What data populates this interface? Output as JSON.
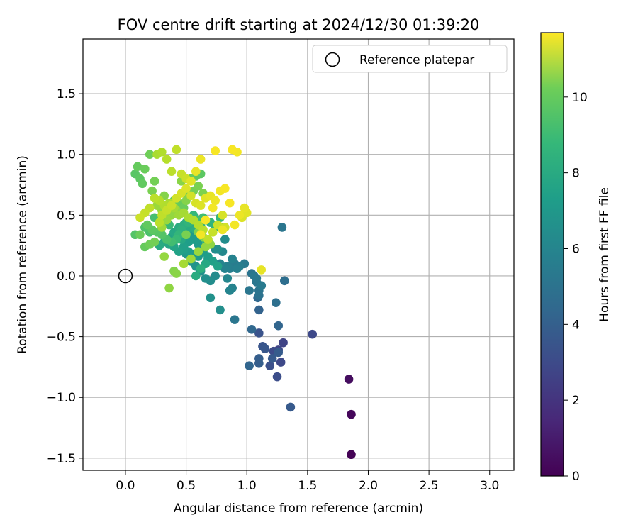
{
  "chart_data": {
    "type": "scatter",
    "title": "FOV centre drift starting at 2024/12/30 01:39:20",
    "xlabel": "Angular distance from reference (arcmin)",
    "ylabel": "Rotation from reference (arcmin)",
    "xlim": [
      -0.35,
      3.2
    ],
    "ylim": [
      -1.6,
      1.95
    ],
    "xticks": [
      0.0,
      0.5,
      1.0,
      1.5,
      2.0,
      2.5,
      3.0
    ],
    "xtick_labels": [
      "0.0",
      "0.5",
      "1.0",
      "1.5",
      "2.0",
      "2.5",
      "3.0"
    ],
    "yticks": [
      -1.5,
      -1.0,
      -0.5,
      0.0,
      0.5,
      1.0,
      1.5
    ],
    "ytick_labels": [
      "−1.5",
      "−1.0",
      "−0.5",
      "0.0",
      "0.5",
      "1.0",
      "1.5"
    ],
    "grid": true,
    "legend": {
      "position": "top-right",
      "label": "Reference platepar"
    },
    "reference_point": {
      "x": 0.0,
      "y": 0.0
    },
    "colorbar": {
      "label": "Hours from first FF file",
      "range": [
        0,
        11.7
      ],
      "ticks": [
        0,
        2,
        4,
        6,
        8,
        10
      ],
      "tick_labels": [
        "0",
        "2",
        "4",
        "6",
        "8",
        "10"
      ],
      "colormap": "viridis"
    },
    "series": [
      {
        "x": [
          1.86,
          1.86,
          1.84,
          1.3,
          1.26,
          1.28,
          1.22,
          1.25,
          1.19,
          1.1,
          1.13,
          1.15,
          1.21,
          1.26,
          1.1,
          1.1,
          1.36,
          1.54,
          1.02,
          1.26,
          1.1,
          1.09,
          1.04
        ],
        "y": [
          -1.47,
          -1.14,
          -0.85,
          -0.55,
          -0.61,
          -0.71,
          -0.62,
          -0.83,
          -0.74,
          -0.47,
          -0.58,
          -0.6,
          -0.68,
          -0.63,
          -0.72,
          -0.68,
          -1.08,
          -0.48,
          -0.74,
          -0.41,
          -0.28,
          -0.18,
          -0.44
        ],
        "hours": [
          0.05,
          0.2,
          0.4,
          2.4,
          2.5,
          2.6,
          2.7,
          2.8,
          2.9,
          3.0,
          3.1,
          3.2,
          3.3,
          3.4,
          3.5,
          3.5,
          3.3,
          2.6,
          3.8,
          3.8,
          3.7,
          3.9,
          3.9
        ]
      },
      {
        "x": [
          1.31,
          1.29,
          1.24,
          1.1,
          1.1,
          1.04,
          1.02,
          1.08,
          1.06,
          1.08,
          1.12,
          0.98,
          0.9,
          0.86,
          0.84,
          0.82,
          0.78,
          0.9,
          0.94,
          0.92,
          0.88,
          0.86,
          0.84,
          0.8,
          0.74,
          0.7,
          0.66,
          0.62,
          0.58,
          0.54,
          0.5,
          0.7,
          0.68,
          0.64,
          0.6,
          0.56,
          0.52,
          0.48,
          0.44,
          0.4,
          0.36,
          0.32,
          0.28,
          0.82,
          0.78,
          0.74,
          0.88,
          0.76
        ],
        "y": [
          -0.04,
          0.4,
          -0.22,
          -0.16,
          -0.12,
          0.02,
          -0.12,
          -0.05,
          0.0,
          -0.02,
          -0.08,
          0.1,
          0.1,
          0.06,
          0.08,
          0.06,
          0.1,
          -0.36,
          0.08,
          0.06,
          -0.1,
          -0.12,
          -0.02,
          0.2,
          0.22,
          -0.04,
          -0.02,
          0.04,
          0.08,
          0.12,
          0.18,
          -0.18,
          0.14,
          0.22,
          0.26,
          0.3,
          0.28,
          0.24,
          0.2,
          0.24,
          0.26,
          0.28,
          0.25,
          0.3,
          -0.28,
          0.0,
          0.14,
          0.22
        ],
        "hours": [
          4.2,
          4.6,
          4.3,
          4.4,
          4.5,
          4.5,
          4.6,
          4.6,
          4.7,
          4.7,
          4.8,
          4.8,
          4.9,
          5.0,
          5.1,
          5.2,
          5.3,
          4.6,
          5.0,
          5.1,
          5.2,
          5.3,
          5.4,
          5.5,
          5.6,
          5.7,
          5.8,
          5.9,
          6.0,
          6.1,
          6.2,
          5.9,
          6.1,
          6.2,
          6.3,
          6.4,
          6.5,
          6.6,
          6.7,
          6.8,
          6.9,
          7.0,
          7.1,
          5.7,
          5.8,
          5.6,
          5.2,
          5.8
        ]
      },
      {
        "x": [
          0.38,
          0.42,
          0.46,
          0.5,
          0.54,
          0.58,
          0.62,
          0.66,
          0.7,
          0.74,
          0.78,
          0.4,
          0.44,
          0.48,
          0.52,
          0.56,
          0.6,
          0.64,
          0.36,
          0.32,
          0.28,
          0.24,
          0.2,
          0.16,
          0.48,
          0.52,
          0.56,
          0.6,
          0.64,
          0.68,
          0.72,
          0.76,
          0.8,
          0.56,
          0.6,
          0.5,
          0.46,
          0.44,
          0.42,
          0.38,
          0.34,
          0.3,
          0.26,
          0.22,
          0.18,
          0.58,
          0.62,
          0.66
        ],
        "y": [
          0.32,
          0.35,
          0.3,
          0.36,
          0.4,
          0.38,
          0.42,
          0.3,
          0.44,
          0.4,
          0.48,
          0.36,
          0.4,
          0.42,
          0.44,
          0.5,
          0.46,
          0.48,
          0.42,
          0.46,
          0.44,
          0.48,
          0.36,
          0.4,
          0.22,
          0.2,
          0.18,
          0.16,
          0.2,
          0.16,
          0.12,
          0.08,
          0.4,
          0.34,
          0.3,
          0.44,
          0.38,
          0.34,
          0.3,
          0.28,
          0.3,
          0.34,
          0.36,
          0.38,
          0.42,
          0.0,
          0.06,
          0.1
        ],
        "hours": [
          6.8,
          6.9,
          7.0,
          7.1,
          7.2,
          7.3,
          7.4,
          7.5,
          7.6,
          7.7,
          7.8,
          7.0,
          7.2,
          7.4,
          7.6,
          7.8,
          8.0,
          8.1,
          7.9,
          8.0,
          8.1,
          8.2,
          8.3,
          8.4,
          6.6,
          6.5,
          6.4,
          6.3,
          6.4,
          6.5,
          6.6,
          6.7,
          7.9,
          6.3,
          6.4,
          7.3,
          7.5,
          7.7,
          7.9,
          8.1,
          8.3,
          8.5,
          8.6,
          8.7,
          8.8,
          7.2,
          7.4,
          7.0
        ]
      },
      {
        "x": [
          0.08,
          0.12,
          0.14,
          0.1,
          0.16,
          0.2,
          0.24,
          0.22,
          0.28,
          0.32,
          0.36,
          0.34,
          0.3,
          0.26,
          0.4,
          0.44,
          0.48,
          0.52,
          0.56,
          0.6,
          0.64,
          0.62,
          0.58,
          0.54,
          0.5,
          0.46,
          0.42,
          0.38,
          0.34,
          0.3,
          0.16,
          0.12,
          0.4,
          0.42,
          0.36,
          0.32,
          0.08,
          0.2,
          0.24,
          0.5,
          0.6,
          0.64,
          0.68,
          0.7,
          0.66,
          0.6,
          0.54,
          0.48
        ],
        "y": [
          0.84,
          0.8,
          0.76,
          0.9,
          0.88,
          1.0,
          0.78,
          0.7,
          0.62,
          0.66,
          0.58,
          0.5,
          0.54,
          0.58,
          0.62,
          0.6,
          0.56,
          0.66,
          0.7,
          0.74,
          0.68,
          0.84,
          0.82,
          0.8,
          0.62,
          0.78,
          0.54,
          0.5,
          0.46,
          0.4,
          0.24,
          0.34,
          0.04,
          0.02,
          -0.1,
          0.16,
          0.34,
          0.26,
          0.28,
          0.34,
          0.36,
          0.32,
          0.3,
          0.26,
          0.24,
          0.2,
          0.14,
          0.1
        ],
        "hours": [
          8.6,
          8.7,
          8.8,
          8.9,
          9.0,
          9.1,
          9.2,
          9.3,
          9.4,
          9.5,
          9.6,
          9.7,
          9.8,
          9.9,
          8.8,
          8.9,
          9.0,
          9.1,
          9.2,
          9.3,
          9.4,
          8.7,
          8.8,
          8.9,
          9.5,
          9.6,
          9.7,
          9.8,
          9.9,
          10.0,
          8.9,
          9.0,
          9.5,
          9.6,
          9.7,
          9.8,
          8.5,
          9.1,
          9.2,
          9.3,
          9.4,
          9.5,
          9.6,
          9.7,
          9.8,
          9.9,
          10.0,
          10.1
        ]
      },
      {
        "x": [
          0.26,
          0.3,
          0.34,
          0.38,
          0.42,
          0.46,
          0.5,
          0.54,
          0.58,
          0.62,
          0.66,
          0.7,
          0.74,
          0.78,
          0.82,
          0.86,
          0.9,
          0.94,
          0.98,
          1.0,
          0.96,
          0.74,
          0.88,
          0.92,
          0.8,
          0.82,
          0.76,
          0.72,
          0.68,
          0.64,
          0.6,
          0.56,
          0.52,
          0.48,
          0.44,
          0.4,
          0.36,
          0.32,
          0.28,
          0.24,
          0.2,
          0.16,
          0.12,
          0.62,
          0.58,
          0.54,
          0.5,
          0.46,
          0.42,
          0.38,
          0.34,
          0.3,
          0.28,
          1.12,
          0.72,
          0.8,
          0.66,
          0.62
        ],
        "y": [
          1.0,
          1.02,
          0.96,
          0.86,
          1.04,
          0.84,
          0.8,
          0.66,
          0.6,
          0.58,
          0.64,
          0.66,
          0.62,
          0.7,
          0.72,
          0.6,
          0.42,
          0.5,
          0.56,
          0.52,
          0.48,
          1.03,
          1.04,
          1.02,
          0.5,
          0.4,
          0.42,
          0.36,
          0.3,
          0.38,
          0.42,
          0.46,
          0.48,
          0.52,
          0.5,
          0.56,
          0.6,
          0.58,
          0.62,
          0.64,
          0.56,
          0.52,
          0.48,
          0.96,
          0.86,
          0.78,
          0.72,
          0.68,
          0.64,
          0.58,
          0.54,
          0.5,
          0.44,
          0.05,
          0.56,
          0.38,
          0.46,
          0.34
        ],
        "hours": [
          10.2,
          10.3,
          10.4,
          10.5,
          10.6,
          10.7,
          10.8,
          10.9,
          11.0,
          11.1,
          11.2,
          11.3,
          11.4,
          11.5,
          11.6,
          11.6,
          11.5,
          11.4,
          11.3,
          11.2,
          11.1,
          11.6,
          11.6,
          11.5,
          11.0,
          10.9,
          10.8,
          10.7,
          10.6,
          10.5,
          10.4,
          10.3,
          10.2,
          10.1,
          10.0,
          10.1,
          10.2,
          10.3,
          10.4,
          10.5,
          10.6,
          10.7,
          10.8,
          11.4,
          11.3,
          11.2,
          11.1,
          11.0,
          10.9,
          10.8,
          10.7,
          10.6,
          10.5,
          11.3,
          11.5,
          11.4,
          11.6,
          11.5
        ]
      }
    ]
  }
}
